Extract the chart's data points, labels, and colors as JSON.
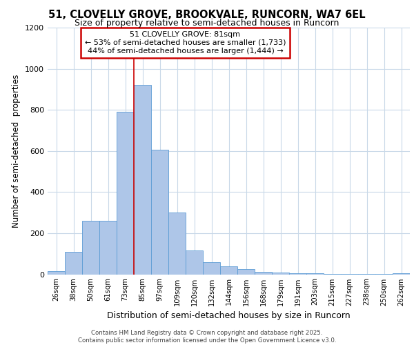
{
  "title1": "51, CLOVELLY GROVE, BROOKVALE, RUNCORN, WA7 6EL",
  "title2": "Size of property relative to semi-detached houses in Runcorn",
  "xlabel": "Distribution of semi-detached houses by size in Runcorn",
  "ylabel": "Number of semi-detached  properties",
  "annotation_line1": "51 CLOVELLY GROVE: 81sqm",
  "annotation_line2": "← 53% of semi-detached houses are smaller (1,733)",
  "annotation_line3": "44% of semi-detached houses are larger (1,444) →",
  "footnote1": "Contains HM Land Registry data © Crown copyright and database right 2025.",
  "footnote2": "Contains public sector information licensed under the Open Government Licence v3.0.",
  "bar_labels": [
    "26sqm",
    "38sqm",
    "50sqm",
    "61sqm",
    "73sqm",
    "85sqm",
    "97sqm",
    "109sqm",
    "120sqm",
    "132sqm",
    "144sqm",
    "156sqm",
    "168sqm",
    "179sqm",
    "191sqm",
    "203sqm",
    "215sqm",
    "227sqm",
    "238sqm",
    "250sqm",
    "262sqm"
  ],
  "bar_values": [
    15,
    110,
    260,
    260,
    790,
    920,
    605,
    300,
    115,
    60,
    38,
    25,
    12,
    8,
    5,
    4,
    3,
    2,
    2,
    2,
    5
  ],
  "bar_color": "#aec6e8",
  "bar_edgecolor": "#5b9bd5",
  "vline_color": "#cc0000",
  "vline_x": 4.5,
  "ylim": [
    0,
    1200
  ],
  "yticks": [
    0,
    200,
    400,
    600,
    800,
    1000,
    1200
  ],
  "grid_color": "#c8d8e8",
  "bg_color": "#ffffff",
  "annotation_box_edgecolor": "#cc0000",
  "title1_fontsize": 10.5,
  "title2_fontsize": 9
}
